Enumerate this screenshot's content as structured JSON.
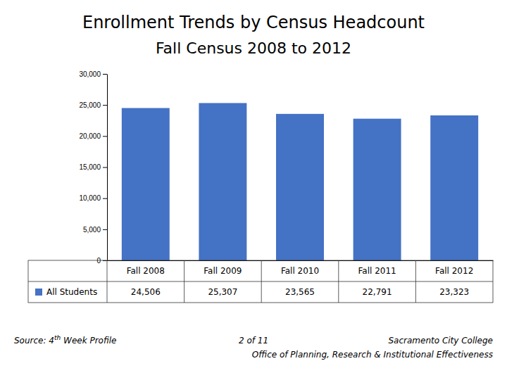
{
  "chart_data": {
    "type": "bar",
    "title": "Enrollment Trends by Census Headcount",
    "subtitle": "Fall Census 2008 to 2012",
    "categories": [
      "Fall 2008",
      "Fall 2009",
      "Fall 2010",
      "Fall 2011",
      "Fall 2012"
    ],
    "series": [
      {
        "name": "All Students",
        "color": "#4472c4",
        "values": [
          24506,
          25307,
          23565,
          22791,
          23323
        ],
        "value_labels": [
          "24,506",
          "25,307",
          "23,565",
          "22,791",
          "23,323"
        ]
      }
    ],
    "ylim": [
      0,
      30000
    ],
    "yticks": [
      0,
      {
        "value": 5000,
        "label": "5,000"
      },
      {
        "value": 10000,
        "label": "10,000"
      },
      {
        "value": 15000,
        "label": "15,000"
      },
      {
        "value": 20000,
        "label": "20,000"
      },
      {
        "value": 25000,
        "label": "25,000"
      },
      {
        "value": 30000,
        "label": "30,000"
      }
    ],
    "grid": false,
    "tick_labels": "y",
    "annotations": [
      "Source: 4",
      "th",
      " Week Profile",
      "2 of 11",
      "Sacramento City College",
      "Office of Planning, Research & Institutional Effectiveness"
    ]
  }
}
